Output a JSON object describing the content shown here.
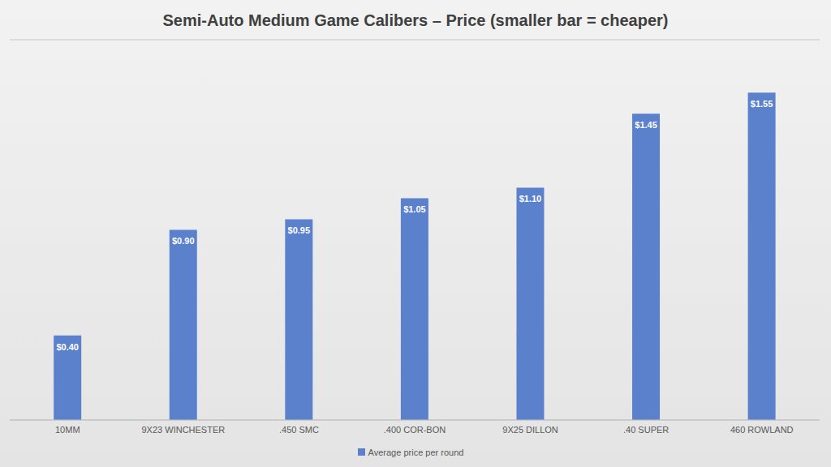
{
  "chart_data": {
    "type": "bar",
    "title": "Semi-Auto Medium Game Calibers – Price (smaller bar = cheaper)",
    "categories": [
      "10MM",
      "9X23 WINCHESTER",
      ".450 SMC",
      ".400 COR-BON",
      "9X25 DILLON",
      ".40 SUPER",
      "460 ROWLAND"
    ],
    "series": [
      {
        "name": "Average price per round",
        "color": "#5b80cc",
        "values": [
          0.4,
          0.9,
          0.95,
          1.05,
          1.1,
          1.45,
          1.55
        ],
        "value_labels": [
          "$0.40",
          "$0.90",
          "$0.95",
          "$1.05",
          "$1.10",
          "$1.45",
          "$1.55"
        ]
      }
    ],
    "ylim": [
      0,
      1.8
    ],
    "yticks": [
      0,
      0.2,
      0.4,
      0.6,
      0.8,
      1,
      1.2,
      1.4,
      1.6,
      1.8
    ],
    "grid": true,
    "data_labels": true,
    "legend": "bottom",
    "tick_labels": "x"
  }
}
